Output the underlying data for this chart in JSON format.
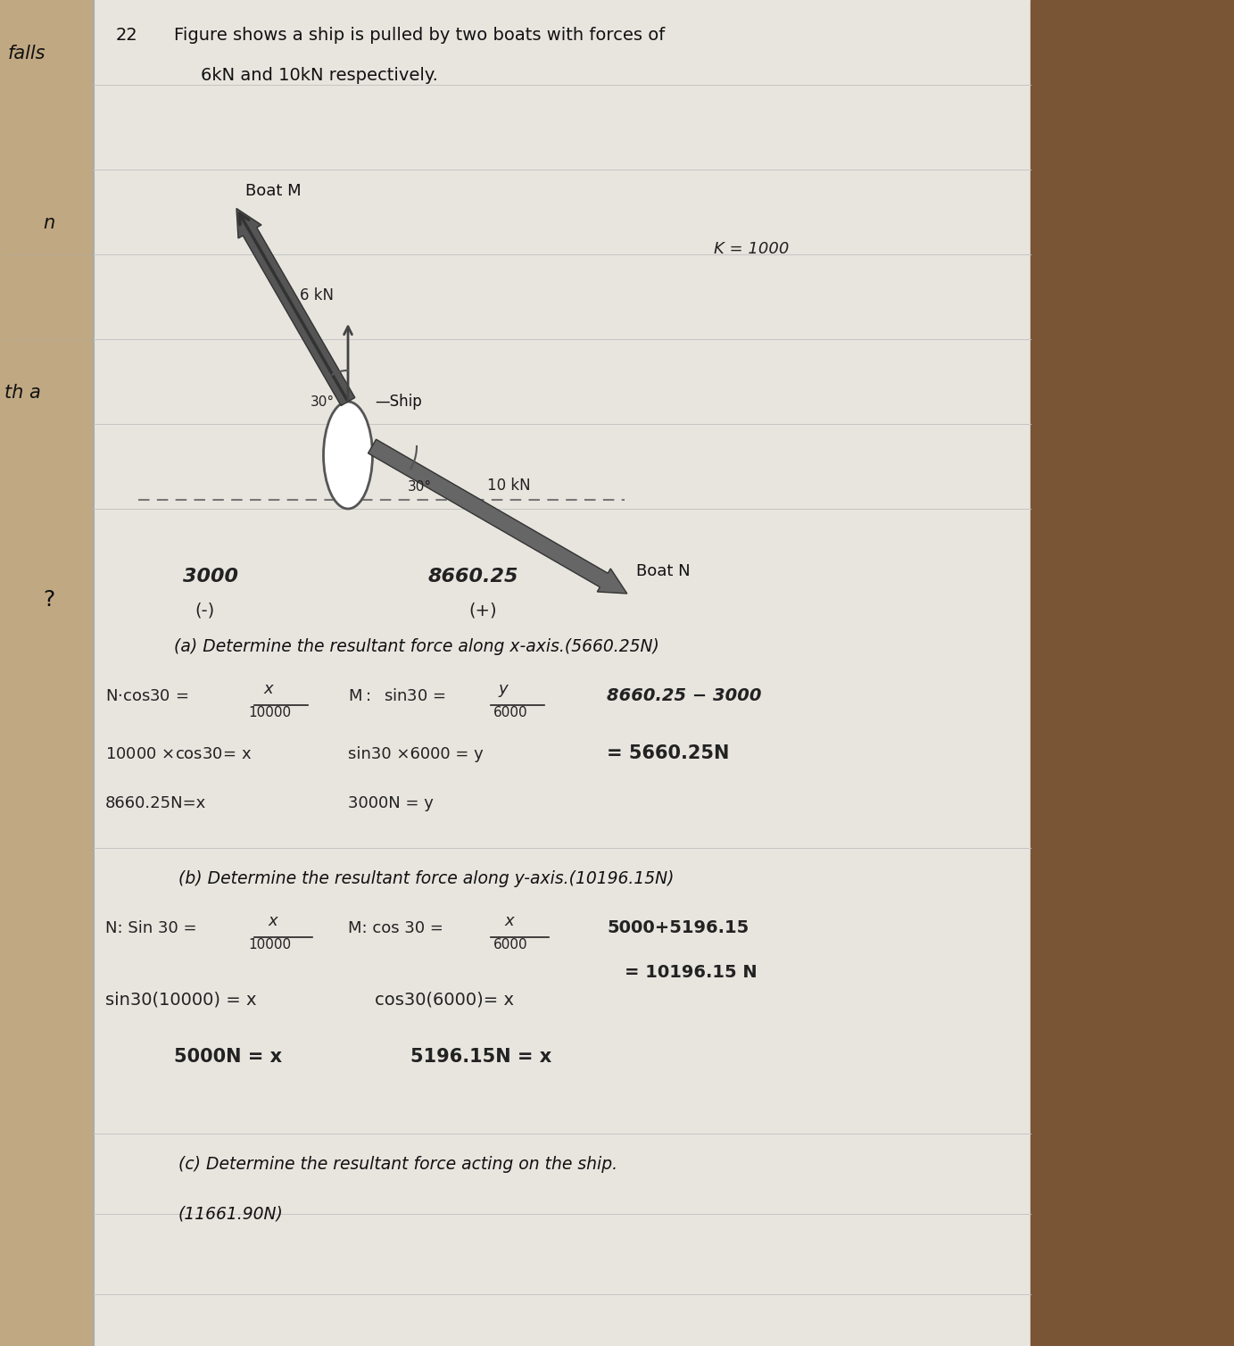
{
  "bg_left_color": "#c8b89a",
  "bg_paper_color": "#e8e5e0",
  "bg_right_color": "#7a5c3a",
  "title_num": "22",
  "title_line1": "Figure shows a ship is pulled by two boats with forces of",
  "title_line2": "6kN and 10kN respectively.",
  "left_margin_text": [
    "falls",
    "n",
    "th a",
    "?"
  ],
  "k_label": "K = 1000",
  "boat_m_label": "Boat M",
  "boat_n_label": "Boat N",
  "ship_label": "—Ship",
  "force_6kn": "6 kN",
  "force_10kn": "10 kN",
  "angle_30_m": "30°",
  "angle_30_n": "30°",
  "val_3000": "3000",
  "val_3000_sign": "(-)",
  "val_8660": "8660.25",
  "val_8660_sign": "(+)",
  "part_a_label": "(a) Determine the resultant force along x-axis.(5660.25N)",
  "part_b_label": "(b) Determine the resultant force along y-axis.(10196.15N)",
  "part_c_label": "(c) Determine the resultant force acting on the ship.",
  "part_c_ans": "(11661.90N)",
  "font_color": "#111111",
  "hand_color": "#222222",
  "paper_line_color": "#cccccc"
}
